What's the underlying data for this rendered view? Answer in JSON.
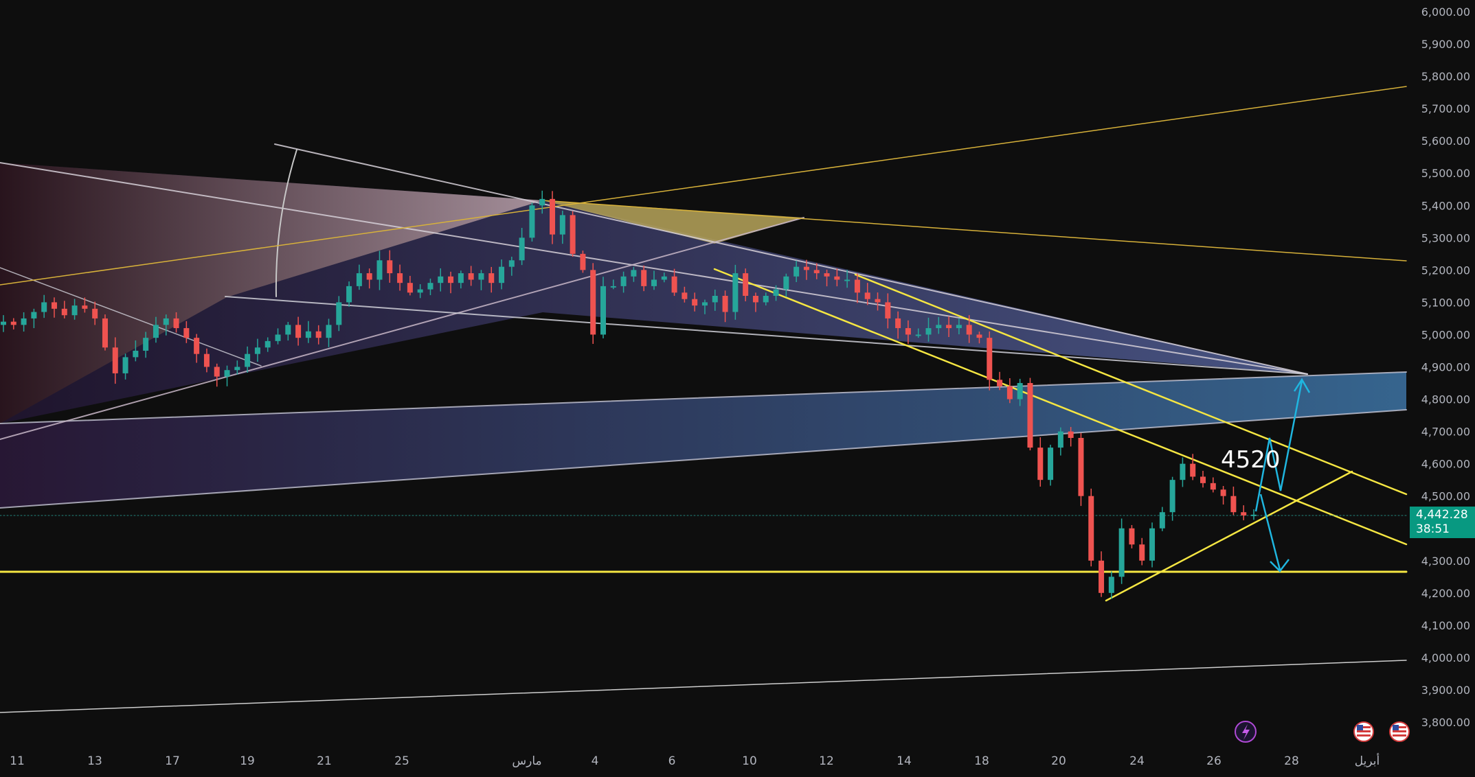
{
  "chart_data": {
    "type": "line",
    "title": "",
    "xlabel": "",
    "ylabel": "",
    "ylim": [
      3750,
      6010
    ],
    "y_ticks": [
      "6,000.00",
      "5,900.00",
      "5,800.00",
      "5,700.00",
      "5,600.00",
      "5,500.00",
      "5,400.00",
      "5,300.00",
      "5,200.00",
      "5,100.00",
      "5,000.00",
      "4,900.00",
      "4,800.00",
      "4,700.00",
      "4,600.00",
      "4,500.00",
      "4,400.00",
      "4,300.00",
      "4,200.00",
      "4,100.00",
      "4,000.00",
      "3,900.00",
      "3,800.00"
    ],
    "x_ticks": [
      "11",
      "13",
      "17",
      "19",
      "21",
      "25",
      "مارس",
      "4",
      "6",
      "10",
      "12",
      "14",
      "18",
      "20",
      "24",
      "26",
      "28",
      "أبريل"
    ],
    "grid": false,
    "series": [
      {
        "values": [
          5040,
          5030,
          5050,
          5070,
          5100,
          5080,
          5060,
          5090,
          5080,
          5050,
          4960,
          4880,
          4930,
          4950,
          4990,
          5030,
          5050,
          5020,
          4990,
          4940,
          4900,
          4870,
          4890,
          4900,
          4940,
          4960,
          4980,
          5000,
          5030,
          4990,
          5010,
          4990,
          5030,
          5100,
          5150,
          5190,
          5170,
          5230,
          5190,
          5160,
          5130,
          5140,
          5160,
          5180,
          5160,
          5190,
          5170,
          5190,
          5160,
          5210,
          5230,
          5300,
          5400,
          5420,
          5310,
          5370,
          5250,
          5200,
          5000,
          5150,
          5150,
          5180,
          5200,
          5150,
          5170,
          5180,
          5130,
          5110,
          5090,
          5100,
          5120,
          5070,
          5190,
          5120,
          5100,
          5120,
          5140,
          5180,
          5210,
          5200,
          5190,
          5180,
          5170,
          5170,
          5130,
          5110,
          5100,
          5050,
          5020,
          5000,
          5000,
          5020,
          5030,
          5020,
          5030,
          5000,
          4990,
          4860,
          4840,
          4800,
          4850,
          4650,
          4550,
          4650,
          4700,
          4680,
          4500,
          4300,
          4200,
          4250,
          4400,
          4350,
          4300,
          4400,
          4450,
          4550,
          4600,
          4560,
          4540,
          4520,
          4500,
          4450,
          4440,
          4442.28
        ]
      }
    ],
    "current_price": "4,442.28",
    "countdown": "38:51",
    "annotation": "4520"
  },
  "colors": {
    "up": "#26a69a",
    "down": "#ef5350",
    "yellow": "#f5e642",
    "arrow": "#1fb6e0",
    "label_bg": "#089981",
    "thin_gold": "#c9a227"
  },
  "icons": [
    "lightning-icon",
    "us-flag-icon",
    "us-flag-icon"
  ]
}
